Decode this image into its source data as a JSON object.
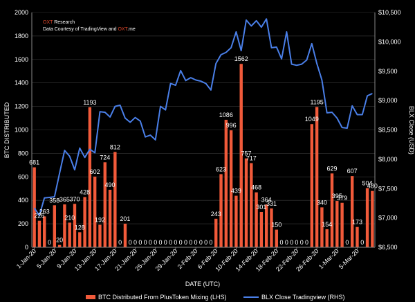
{
  "credits": {
    "line1_brand": "OXT",
    "line1_rest": " Research",
    "line2_pre": "Data Courtesy of TradingView and ",
    "line2_brand": "OXT",
    "line2_post": ".me"
  },
  "chart_data": {
    "type": "bar+line",
    "xlabel": "DATE (UTC)",
    "ylabel_left": "BTC DISTRIBUTED",
    "ylabel_right": "BLX Close (USD)",
    "ylim_left": [
      0,
      2000
    ],
    "yticks_left": [
      "0",
      "200",
      "400",
      "600",
      "800",
      "1000",
      "1200",
      "1400",
      "1600",
      "1800",
      "2000"
    ],
    "ylim_right": [
      6500,
      10500
    ],
    "yticks_right": [
      "$6,500",
      "$7,000",
      "$7,500",
      "$8,000",
      "$8,500",
      "$9,000",
      "$9,500",
      "$10,000",
      "$10,500"
    ],
    "xtick_labels": [
      "1-Jan-20",
      "5-Jan-20",
      "9-Jan-20",
      "13-Jan-20",
      "17-Jan-20",
      "21-Jan-20",
      "25-Jan-20",
      "29-Jan-20",
      "2-Feb-20",
      "6-Feb-20",
      "10-Feb-20",
      "14-Feb-20",
      "18-Feb-20",
      "22-Feb-20",
      "26-Feb-20",
      "1-Mar-20",
      "5-Mar-20"
    ],
    "legend": [
      {
        "name": "BTC Distributed From PlusToken Mixing (LHS)",
        "color": "#f15a3a",
        "kind": "bar"
      },
      {
        "name": "BLX Close Tradingview (RHS)",
        "color": "#4a7fe8",
        "kind": "line"
      }
    ],
    "colors": {
      "bar": "#f15a3a",
      "line": "#4a7fe8",
      "grid": "#3a3a3a",
      "brand": "#e0472b"
    },
    "series": [
      {
        "name": "BTC Distributed From PlusToken Mixing (LHS)",
        "axis": "left",
        "values": [
          681,
          226,
          263,
          0,
          358,
          20,
          365,
          210,
          370,
          128,
          428,
          1193,
          602,
          192,
          724,
          490,
          812,
          0,
          201,
          0,
          0,
          0,
          0,
          0,
          0,
          0,
          0,
          0,
          0,
          0,
          0,
          0,
          0,
          0,
          0,
          0,
          243,
          623,
          1086,
          996,
          439,
          1562,
          757,
          717,
          468,
          301,
          364,
          331,
          150,
          0,
          0,
          0,
          0,
          0,
          0,
          1049,
          1195,
          340,
          154,
          629,
          395,
          379,
          0,
          607,
          173,
          0,
          504,
          480
        ],
        "labels": [
          "681",
          "226",
          "263",
          "0",
          "358",
          "20",
          "365",
          "210",
          "370",
          "128",
          "428",
          "1193",
          "602",
          "192",
          "724",
          "490",
          "812",
          "0",
          "201",
          "0",
          "0",
          "0",
          "0",
          "0",
          "0",
          "0",
          "0",
          "0",
          "0",
          "0",
          "0",
          "0",
          "0",
          "0",
          "0",
          "0",
          "243",
          "623",
          "1086",
          "996",
          "439",
          "1562",
          "757",
          "717",
          "468",
          "301",
          "364",
          "331",
          "150",
          "0",
          "0",
          "0",
          "0",
          "0",
          "0",
          "1049",
          "1195",
          "340",
          "154",
          "629",
          "395",
          "379",
          "0",
          "607",
          "173",
          "0",
          "504",
          "480"
        ]
      },
      {
        "name": "BLX Close Tradingview (RHS)",
        "axis": "right",
        "values": [
          7170,
          7040,
          7340,
          7350,
          7360,
          7760,
          8150,
          8050,
          7820,
          8190,
          8030,
          8170,
          8110,
          8810,
          8800,
          8720,
          8900,
          8920,
          8700,
          8630,
          8710,
          8650,
          8380,
          8410,
          8330,
          8900,
          8840,
          9290,
          9260,
          9510,
          9340,
          9390,
          9350,
          9330,
          9290,
          9180,
          9630,
          9780,
          9820,
          9900,
          10170,
          9850,
          10370,
          10270,
          10360,
          10250,
          10390,
          9900,
          9910,
          9710,
          10170,
          9620,
          9600,
          9620,
          9690,
          9970,
          9630,
          9350,
          8790,
          8800,
          8700,
          8540,
          8530,
          8910,
          8760,
          8760,
          9080,
          9120
        ]
      }
    ]
  }
}
